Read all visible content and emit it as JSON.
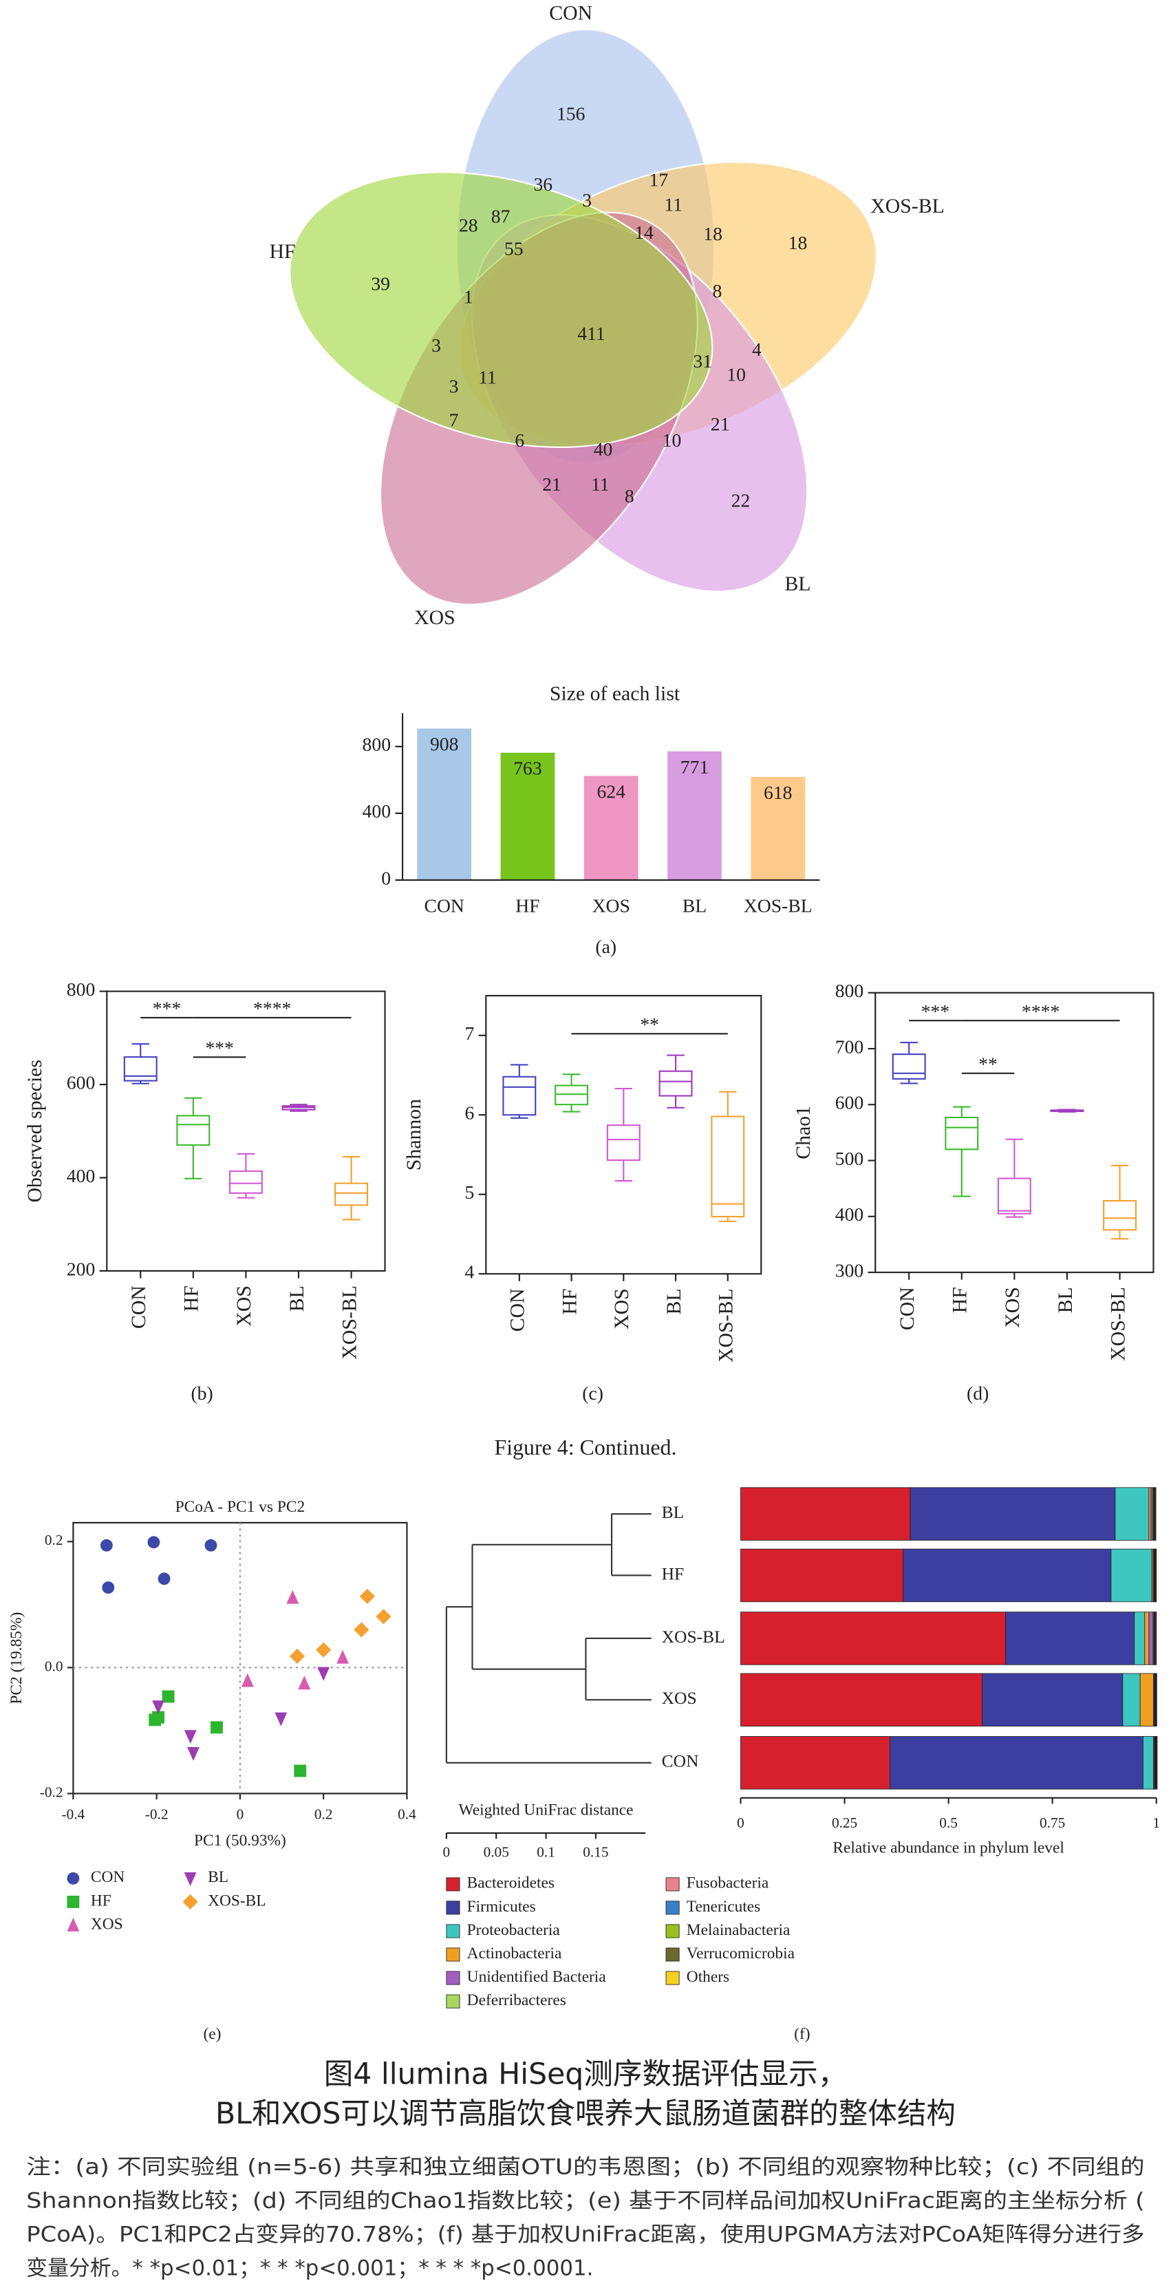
{
  "chart_data": [
    {
      "type": "venn",
      "sets": [
        {
          "name": "CON",
          "color": "#a9c2ec"
        },
        {
          "name": "XOS-BL",
          "color": "#fdc868"
        },
        {
          "name": "BL",
          "color": "#d99ae3"
        },
        {
          "name": "XOS",
          "color": "#cc6f95"
        },
        {
          "name": "HF",
          "color": "#9fd63c"
        }
      ],
      "regions": [
        156,
        17,
        36,
        3,
        11,
        18,
        18,
        14,
        28,
        87,
        55,
        39,
        1,
        8,
        3,
        411,
        31,
        4,
        10,
        3,
        11,
        7,
        6,
        40,
        10,
        21,
        21,
        11,
        8,
        22
      ]
    },
    {
      "type": "bar",
      "title": "Size of each list",
      "panel": "(a)",
      "categories": [
        "CON",
        "HF",
        "XOS",
        "BL",
        "XOS-BL"
      ],
      "values": [
        908,
        763,
        624,
        771,
        618
      ],
      "colors": [
        "#a9c8e8",
        "#76c41c",
        "#ee97c4",
        "#d89ce0",
        "#ffc98a"
      ],
      "ylim": [
        0,
        1000
      ],
      "yticks": [
        0,
        400,
        800
      ]
    },
    {
      "type": "box",
      "panel": "(b)",
      "ylabel": "Observed species",
      "categories": [
        "CON",
        "HF",
        "XOS",
        "BL",
        "XOS-BL"
      ],
      "stats": [
        [
          602,
          608,
          618,
          659,
          687
        ],
        [
          398,
          470,
          514,
          533,
          571
        ],
        [
          357,
          367,
          388,
          414,
          451
        ],
        [
          543,
          546,
          551,
          554,
          557
        ],
        [
          310,
          341,
          367,
          388,
          445
        ]
      ],
      "colors": [
        "#4545c0",
        "#3dbb2e",
        "#d35bd0",
        "#a23cc0",
        "#f5a030"
      ],
      "ylim": [
        200,
        800
      ],
      "yticks": [
        200,
        400,
        600,
        800
      ],
      "annotations": [
        {
          "from": "CON",
          "to": "HF",
          "label": "***"
        },
        {
          "from": "HF",
          "to": "XOS-BL",
          "label": "****"
        },
        {
          "from": "HF",
          "to": "XOS",
          "label": "***"
        }
      ]
    },
    {
      "type": "box",
      "panel": "(c)",
      "ylabel": "Shannon",
      "categories": [
        "CON",
        "HF",
        "XOS",
        "BL",
        "XOS-BL"
      ],
      "stats": [
        [
          5.96,
          6.0,
          6.35,
          6.48,
          6.63
        ],
        [
          6.04,
          6.13,
          6.26,
          6.37,
          6.51
        ],
        [
          5.17,
          5.43,
          5.69,
          5.87,
          6.33
        ],
        [
          6.09,
          6.24,
          6.42,
          6.55,
          6.75
        ],
        [
          4.66,
          4.72,
          4.88,
          5.98,
          6.29
        ]
      ],
      "colors": [
        "#4545c0",
        "#3dbb2e",
        "#d35bd0",
        "#a23cc0",
        "#f5a030"
      ],
      "ylim": [
        4,
        7.5
      ],
      "yticks": [
        4,
        5,
        6,
        7
      ],
      "annotations": [
        {
          "from": "HF",
          "to": "XOS-BL",
          "label": "**"
        }
      ]
    },
    {
      "type": "box",
      "panel": "(d)",
      "ylabel": "Chao1",
      "categories": [
        "CON",
        "HF",
        "XOS",
        "BL",
        "XOS-BL"
      ],
      "stats": [
        [
          638,
          646,
          656,
          690,
          711
        ],
        [
          436,
          520,
          559,
          577,
          596
        ],
        [
          399,
          405,
          410,
          468,
          538
        ],
        [
          587,
          588,
          589,
          590,
          591
        ],
        [
          360,
          376,
          397,
          428,
          491
        ]
      ],
      "colors": [
        "#4545c0",
        "#3dbb2e",
        "#d35bd0",
        "#a23cc0",
        "#f5a030"
      ],
      "ylim": [
        300,
        800
      ],
      "yticks": [
        300,
        400,
        500,
        600,
        700,
        800
      ],
      "annotations": [
        {
          "from": "CON",
          "to": "HF",
          "label": "***"
        },
        {
          "from": "HF",
          "to": "XOS-BL",
          "label": "****"
        },
        {
          "from": "HF",
          "to": "XOS",
          "label": "**"
        }
      ]
    },
    {
      "type": "scatter",
      "title": "PCoA - PC1 vs PC2",
      "panel": "(e)",
      "xlabel": "PC1 (50.93%)",
      "ylabel": "PC2 (19.85%)",
      "xlim": [
        -0.4,
        0.4
      ],
      "xticks": [
        -0.4,
        -0.2,
        0,
        0.2,
        0.4
      ],
      "ylim": [
        -0.2,
        0.23
      ],
      "yticks": [
        -0.2,
        {
          "value": 0,
          "label": "0.0"
        },
        0.2
      ],
      "series": [
        {
          "name": "CON",
          "color": "#3e48a8",
          "marker": "circle",
          "x": [
            -0.32,
            -0.207,
            -0.07,
            -0.316,
            -0.182
          ],
          "y": [
            0.194,
            0.199,
            0.194,
            0.127,
            0.141
          ]
        },
        {
          "name": "HF",
          "color": "#2db52d",
          "marker": "square",
          "x": [
            -0.172,
            -0.196,
            -0.204,
            -0.056,
            0.144
          ],
          "y": [
            -0.046,
            -0.079,
            -0.083,
            -0.095,
            -0.164
          ]
        },
        {
          "name": "XOS",
          "color": "#d75cb0",
          "marker": "triangle-up",
          "x": [
            0.126,
            0.018,
            0.154,
            0.246
          ],
          "y": [
            0.111,
            -0.021,
            -0.025,
            0.016
          ]
        },
        {
          "name": "BL",
          "color": "#9c3db0",
          "marker": "triangle-down",
          "x": [
            -0.196,
            -0.119,
            -0.112,
            0.098,
            0.2
          ],
          "y": [
            -0.062,
            -0.109,
            -0.136,
            -0.081,
            -0.009
          ]
        },
        {
          "name": "XOS-BL",
          "color": "#f5a030",
          "marker": "diamond",
          "x": [
            0.137,
            0.2,
            0.305,
            0.344,
            0.291
          ],
          "y": [
            0.018,
            0.028,
            0.113,
            0.081,
            0.06
          ]
        }
      ]
    },
    {
      "type": "dendrogram",
      "xlabel": "Weighted UniFrac distance",
      "xlim": [
        0,
        0.2
      ],
      "xticks": [
        0,
        0.05,
        0.1,
        0.15
      ],
      "tree": {
        "distance": 0,
        "children": [
          {
            "distance": 0.026,
            "children": [
              {
                "distance": 0.166,
                "children": [
                  {
                    "label": "BL"
                  },
                  {
                    "label": "HF"
                  }
                ]
              },
              {
                "distance": 0.14,
                "children": [
                  {
                    "label": "XOS-BL"
                  },
                  {
                    "label": "XOS"
                  }
                ]
              }
            ]
          },
          {
            "label": "CON"
          }
        ]
      }
    },
    {
      "type": "stacked-bar-h",
      "panel": "(f)",
      "xlabel": "Relative abundance in phylum level",
      "xlim": [
        0,
        1
      ],
      "xticks": [
        0,
        0.25,
        0.5,
        0.75,
        1
      ],
      "series": [
        {
          "name": "Bacteroidetes",
          "color": "#d7202e",
          "values": [
            0.408,
            0.391,
            0.637,
            0.581,
            0.359
          ]
        },
        {
          "name": "Firmicutes",
          "color": "#3d3fa0",
          "values": [
            0.493,
            0.5,
            0.31,
            0.338,
            0.609
          ]
        },
        {
          "name": "Proteobacteria",
          "color": "#3ec7c0",
          "values": [
            0.081,
            0.098,
            0.025,
            0.042,
            0.025
          ]
        },
        {
          "name": "Actinobacteria",
          "color": "#f0a020",
          "values": [
            0.005,
            0.003,
            0.01,
            0.032,
            0.002
          ]
        },
        {
          "name": "Unidentified Bacteria",
          "color": "#a35fc0",
          "values": [
            0.004,
            0.002,
            0.01,
            0.002,
            0.001
          ]
        },
        {
          "name": "Deferribacteres",
          "color": "#a8d860",
          "values": [
            0.002,
            0.001,
            0.002,
            0.001,
            0.001
          ]
        },
        {
          "name": "Fusobacteria",
          "color": "#e8828e",
          "values": [
            0.001,
            0.001,
            0.001,
            0.001,
            0.001
          ]
        },
        {
          "name": "Tenericutes",
          "color": "#3a80c8",
          "values": [
            0.001,
            0.001,
            0.001,
            0.001,
            0.001
          ]
        },
        {
          "name": "Melainabacteria",
          "color": "#98c020",
          "values": [
            0.001,
            0.001,
            0.001,
            0.001,
            0.001
          ]
        },
        {
          "name": "Verrucomicrobia",
          "color": "#6a6a30",
          "values": [
            0.002,
            0.001,
            0.002,
            0.001,
            0.001
          ]
        },
        {
          "name": "Others",
          "color": "#f5d020",
          "values": [
            0.001,
            0.001,
            0.001,
            0.001,
            0.001
          ]
        }
      ]
    }
  ],
  "caption": {
    "continued": "Figure 4: Continued.",
    "title_lines": [
      "图4 llumina HiSeq测序数据评估显示，",
      "BL和XOS可以调节高脂饮食喂养大鼠肠道菌群的整体结构"
    ],
    "note_lines": [
      "注：(a) 不同实验组 (n=5-6) 共享和独立细菌OTU的韦恩图；(b) 不同组的观察物种比较；(c) 不同组的",
      "Shannon指数比较；(d) 不同组的Chao1指数比较；(e) 基于不同样品间加权UniFrac距离的主坐标分析 (",
      "PCoA)。PC1和PC2占变异的70.78%；(f) 基于加权UniFrac距离，使用UPGMA方法对PCoA矩阵得分进行多",
      "变量分析。* *p<0.01；* * *p<0.001；* * * *p<0.0001."
    ]
  }
}
